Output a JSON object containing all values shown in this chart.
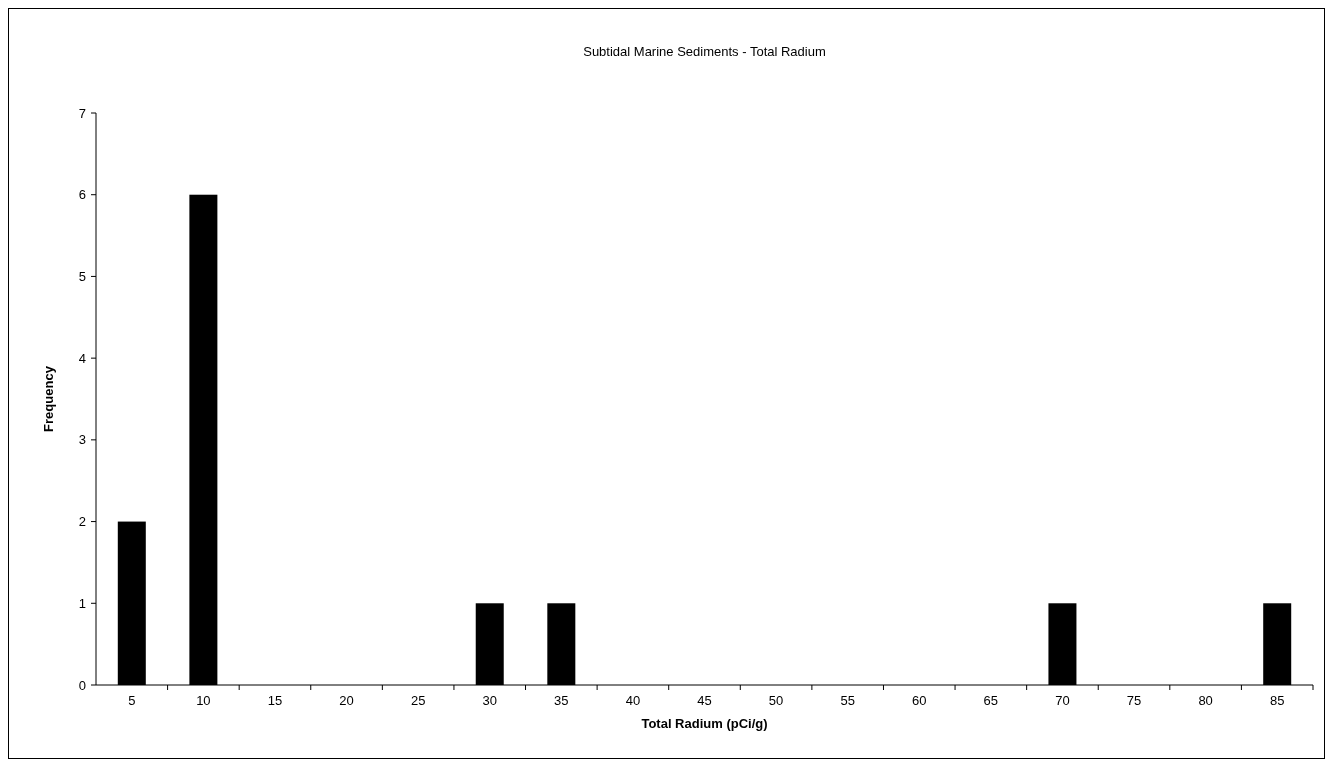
{
  "chart_data": {
    "type": "bar",
    "title": "Subtidal Marine Sediments - Total Radium",
    "xlabel": "Total Radium (pCi/g)",
    "ylabel": "Frequency",
    "categories": [
      "5",
      "10",
      "15",
      "20",
      "25",
      "30",
      "35",
      "40",
      "45",
      "50",
      "55",
      "60",
      "65",
      "70",
      "75",
      "80",
      "85"
    ],
    "values": [
      2,
      6,
      0,
      0,
      0,
      1,
      1,
      0,
      0,
      0,
      0,
      0,
      0,
      1,
      0,
      0,
      1
    ],
    "color": "#000000",
    "ylim": [
      0,
      7
    ],
    "yticks": [
      0,
      1,
      2,
      3,
      4,
      5,
      6,
      7
    ]
  }
}
